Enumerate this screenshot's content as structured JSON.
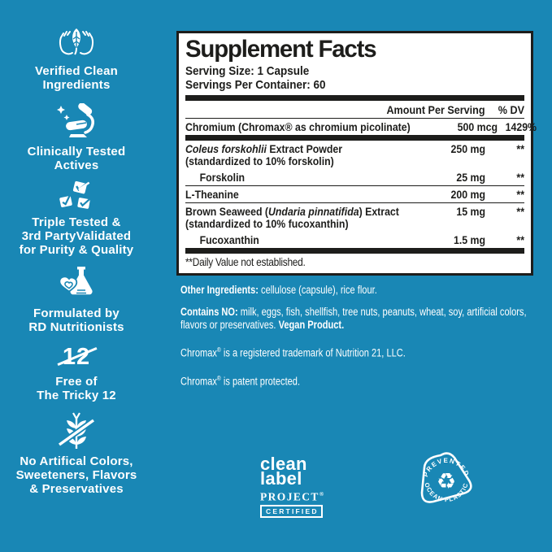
{
  "colors": {
    "background": "#1987b5",
    "panel_background": "#ffffff",
    "panel_border": "#1d1d1b",
    "text_dark": "#1d1d1b",
    "text_light": "#ffffff"
  },
  "sidebar": {
    "items": [
      {
        "icon": "hands-holding-leaf-icon",
        "lines": [
          "Verified Clean",
          "Ingredients"
        ]
      },
      {
        "icon": "microscope-icon",
        "lines": [
          "Clinically Tested",
          "Actives"
        ]
      },
      {
        "icon": "triple-checkmarks-icon",
        "lines": [
          "Triple Tested &",
          "3rd PartyValidated",
          "for Purity & Quality"
        ]
      },
      {
        "icon": "flask-heart-icon",
        "lines": [
          "Formulated by",
          "RD Nutritionists"
        ]
      },
      {
        "icon": "crossed-out-12-icon",
        "icon_text": "12",
        "lines": [
          "Free of",
          "The Tricky 12"
        ]
      },
      {
        "icon": "no-wheat-icon",
        "lines": [
          "No Artifical Colors,",
          "Sweeteners, Flavors",
          "& Preservatives"
        ]
      }
    ]
  },
  "panel": {
    "title": "Supplement Facts",
    "serving_size": "Serving Size: 1 Capsule",
    "servings_per_container": "Servings Per Container: 60",
    "columns": {
      "amount": "Amount Per Serving",
      "dv": "% DV"
    },
    "rows": [
      {
        "name": [
          {
            "text": "Chromium (Chromax® as chromium picolinate)"
          }
        ],
        "amount": "500 mcg",
        "dv": "1429%",
        "indent": false,
        "sep_after": "thick"
      },
      {
        "name": [
          {
            "text": "Coleus forskohlii",
            "italic": true
          },
          {
            "text": " Extract Powder"
          }
        ],
        "sub": "(standardized to 10% forskolin)",
        "amount": "250 mg",
        "dv": "**",
        "indent": false,
        "sep_after": "none"
      },
      {
        "name": [
          {
            "text": "Forskolin"
          }
        ],
        "amount": "25 mg",
        "dv": "**",
        "indent": true,
        "sep_after": "thin"
      },
      {
        "name": [
          {
            "text": "L-Theanine"
          }
        ],
        "amount": "200 mg",
        "dv": "**",
        "indent": false,
        "sep_after": "thin"
      },
      {
        "name": [
          {
            "text": "Brown Seaweed ("
          },
          {
            "text": "Undaria pinnatifida",
            "italic": true
          },
          {
            "text": ") Extract"
          }
        ],
        "sub": "(standardized to 10% fucoxanthin)",
        "amount": "15 mg",
        "dv": "**",
        "indent": false,
        "sep_after": "none"
      },
      {
        "name": [
          {
            "text": "Fucoxanthin"
          }
        ],
        "amount": "1.5 mg",
        "dv": "**",
        "indent": true,
        "sep_after": "thick"
      }
    ],
    "footnote": "**Daily Value not established."
  },
  "paragraphs": [
    {
      "parts": [
        {
          "text": "Other Ingredients:",
          "bold": true
        },
        {
          "text": " cellulose (capsule), rice flour."
        }
      ]
    },
    {
      "parts": [
        {
          "text": "Contains NO:",
          "bold": true
        },
        {
          "text": " milk, eggs, fish, shellfish, tree nuts, peanuts, wheat, soy, artificial colors, flavors or preservatives. "
        },
        {
          "text": "Vegan Product.",
          "bold": true
        }
      ],
      "gap": true
    },
    {
      "parts": [
        {
          "text": "Chromax"
        },
        {
          "text": "®",
          "sup": true
        },
        {
          "text": " is a registered trademark of Nutrition 21, LLC."
        }
      ],
      "gap": true
    },
    {
      "parts": [
        {
          "text": "Chromax"
        },
        {
          "text": "®",
          "sup": true
        },
        {
          "text": " is patent protected."
        }
      ]
    }
  ],
  "badges": {
    "clean_label": {
      "line1": "clean",
      "line2": "label",
      "line3": "PROJECT",
      "reg_mark": "®",
      "certified": "CERTIFIED"
    },
    "ocean_plastic": {
      "top_text": "PREVENTED",
      "bottom_text": "OCEAN PLASTIC",
      "icon": "recycle-arrows-icon"
    }
  }
}
